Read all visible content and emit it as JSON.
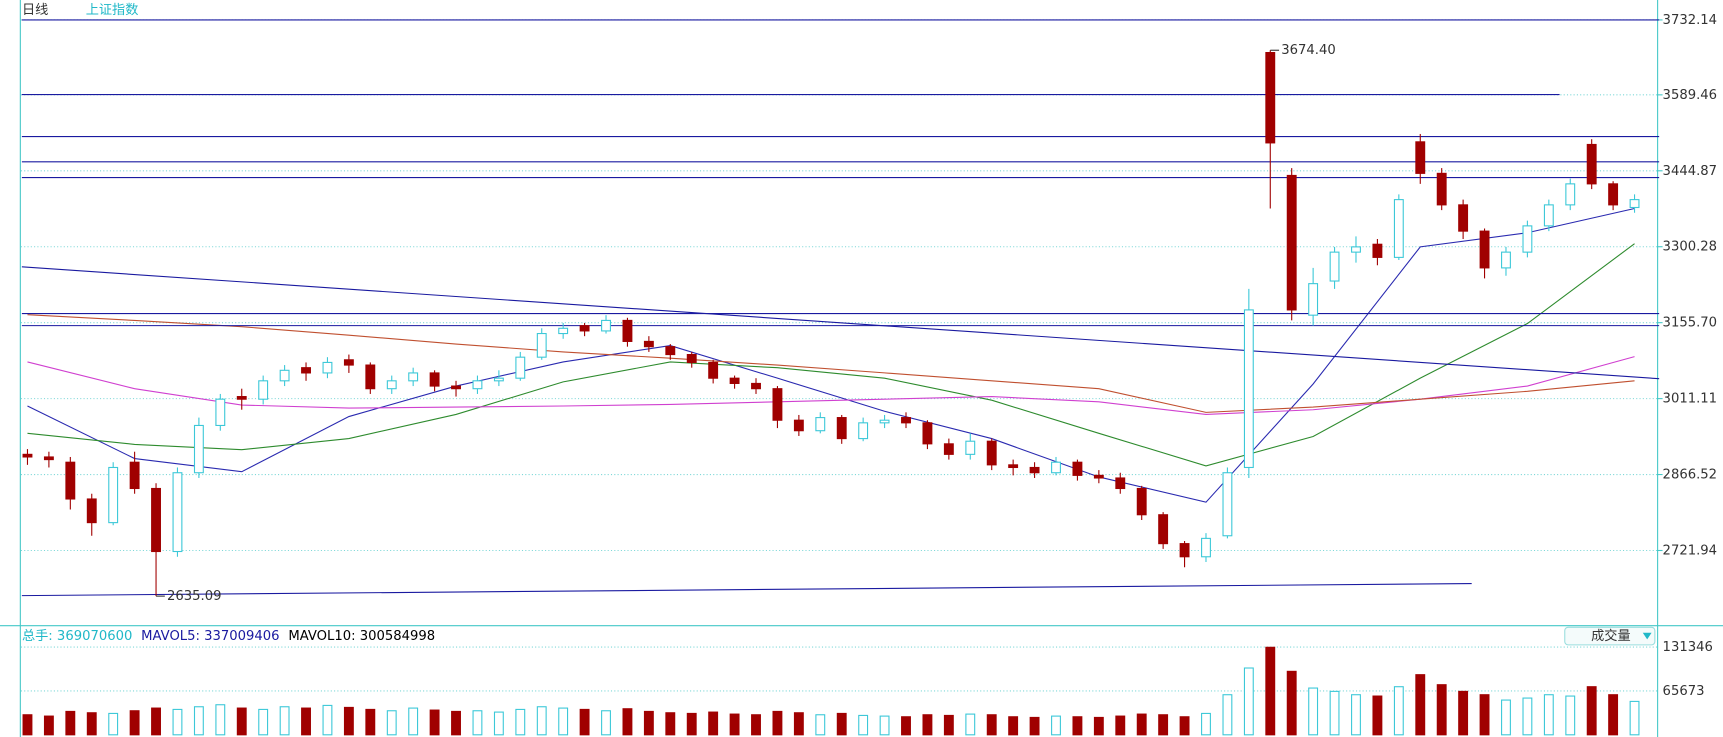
{
  "header": {
    "period": "日线",
    "symbol": "上证指数"
  },
  "chart_data": {
    "type": "candlestick",
    "up_color": "#3cc8d8",
    "down_color": "#a00000",
    "ylim": [
      2584,
      3745
    ],
    "yticks": [
      3732.14,
      3589.46,
      3444.87,
      3300.28,
      {
        "value": 3155.7,
        "label": "3155.70"
      },
      3011.11,
      2866.52,
      2721.94
    ],
    "grid": true,
    "candles": [
      [
        2905,
        2900,
        2885,
        2915
      ],
      [
        2900,
        2895,
        2880,
        2910
      ],
      [
        2890,
        2820,
        2800,
        2900
      ],
      [
        2820,
        2775,
        2750,
        2830
      ],
      [
        2775,
        2880,
        2770,
        2890
      ],
      [
        2890,
        2840,
        2830,
        2910
      ],
      [
        2840,
        2720,
        2635.09,
        2850
      ],
      [
        2720,
        2870,
        2710,
        2880
      ],
      [
        2870,
        2960,
        2860,
        2975
      ],
      [
        2960,
        3010,
        2950,
        3020
      ],
      [
        3015,
        3010,
        2990,
        3030
      ],
      [
        3010,
        3045,
        3000,
        3055
      ],
      [
        3045,
        3065,
        3035,
        3075
      ],
      [
        3070,
        3060,
        3045,
        3080
      ],
      [
        3060,
        3080,
        3050,
        3090
      ],
      [
        3085,
        3075,
        3060,
        3095
      ],
      [
        3075,
        3030,
        3020,
        3080
      ],
      [
        3030,
        3045,
        3020,
        3055
      ],
      [
        3045,
        3060,
        3035,
        3070
      ],
      [
        3060,
        3035,
        3025,
        3065
      ],
      [
        3035,
        3030,
        3015,
        3045
      ],
      [
        3030,
        3045,
        3020,
        3055
      ],
      [
        3045,
        3050,
        3035,
        3065
      ],
      [
        3050,
        3090,
        3045,
        3100
      ],
      [
        3090,
        3135,
        3085,
        3145
      ],
      [
        3135,
        3145,
        3125,
        3155
      ],
      [
        3150,
        3140,
        3130,
        3155
      ],
      [
        3140,
        3160,
        3135,
        3170
      ],
      [
        3160,
        3120,
        3110,
        3165
      ],
      [
        3120,
        3110,
        3100,
        3130
      ],
      [
        3110,
        3095,
        3085,
        3115
      ],
      [
        3095,
        3080,
        3070,
        3100
      ],
      [
        3080,
        3050,
        3040,
        3085
      ],
      [
        3050,
        3040,
        3030,
        3055
      ],
      [
        3040,
        3030,
        3020,
        3050
      ],
      [
        3030,
        2970,
        2955,
        3035
      ],
      [
        2970,
        2950,
        2940,
        2980
      ],
      [
        2950,
        2975,
        2945,
        2985
      ],
      [
        2975,
        2935,
        2925,
        2980
      ],
      [
        2935,
        2965,
        2930,
        2975
      ],
      [
        2965,
        2970,
        2955,
        2980
      ],
      [
        2975,
        2965,
        2955,
        2985
      ],
      [
        2965,
        2925,
        2915,
        2970
      ],
      [
        2925,
        2905,
        2895,
        2935
      ],
      [
        2905,
        2930,
        2895,
        2945
      ],
      [
        2930,
        2885,
        2875,
        2935
      ],
      [
        2885,
        2880,
        2865,
        2895
      ],
      [
        2880,
        2870,
        2860,
        2890
      ],
      [
        2870,
        2890,
        2865,
        2900
      ],
      [
        2890,
        2865,
        2855,
        2895
      ],
      [
        2865,
        2860,
        2850,
        2875
      ],
      [
        2860,
        2840,
        2830,
        2870
      ],
      [
        2840,
        2790,
        2780,
        2845
      ],
      [
        2790,
        2735,
        2725,
        2795
      ],
      [
        2735,
        2710,
        2690,
        2740
      ],
      [
        2710,
        2745,
        2700,
        2755
      ],
      [
        2750,
        2870,
        2745,
        2880
      ],
      [
        2880,
        3180,
        2860,
        3220
      ],
      [
        3670,
        3498,
        3373,
        3674.4
      ],
      [
        3436,
        3180,
        3160,
        3450
      ],
      [
        3170,
        3230,
        3150,
        3260
      ],
      [
        3235,
        3290,
        3220,
        3300
      ],
      [
        3290,
        3300,
        3270,
        3320
      ],
      [
        3305,
        3280,
        3265,
        3315
      ],
      [
        3280,
        3390,
        3275,
        3400
      ],
      [
        3500,
        3440,
        3420,
        3515
      ],
      [
        3440,
        3380,
        3370,
        3450
      ],
      [
        3380,
        3330,
        3315,
        3390
      ],
      [
        3330,
        3260,
        3240,
        3335
      ],
      [
        3260,
        3290,
        3245,
        3300
      ],
      [
        3290,
        3340,
        3280,
        3350
      ],
      [
        3340,
        3380,
        3330,
        3390
      ],
      [
        3380,
        3420,
        3370,
        3430
      ],
      [
        3495,
        3420,
        3410,
        3505
      ],
      [
        3420,
        3380,
        3370,
        3425
      ],
      [
        3375,
        3390,
        3365,
        3400
      ]
    ],
    "annotations": [
      {
        "label": "3674.40",
        "value": 3674.4,
        "index": 58
      },
      {
        "label": "2635.09",
        "value": 2635.09,
        "index": 6
      }
    ],
    "lines": [
      {
        "color": "#2a2ab0",
        "x": [
          0,
          5,
          10,
          15,
          20,
          25,
          30,
          35,
          40,
          45,
          50,
          55,
          60,
          65,
          70,
          75
        ],
        "values": [
          2997,
          2897,
          2872,
          2977,
          3035,
          3081,
          3112,
          3050,
          2987,
          2935,
          2862,
          2814,
          3039,
          3300,
          3327,
          3373
        ]
      },
      {
        "color": "#2e8b2e",
        "x": [
          0,
          5,
          10,
          15,
          20,
          25,
          30,
          35,
          40,
          45,
          50,
          55,
          60,
          65,
          70,
          75
        ],
        "values": [
          2945,
          2924,
          2914,
          2935,
          2981,
          3043,
          3081,
          3070,
          3050,
          3008,
          2945,
          2883,
          2939,
          3050,
          3154,
          3306
        ]
      },
      {
        "color": "#d040d0",
        "x": [
          0,
          5,
          10,
          15,
          20,
          25,
          30,
          35,
          40,
          45,
          50,
          55,
          60,
          65,
          70,
          75
        ],
        "values": [
          3081,
          3030,
          2999,
          2993,
          2995,
          2997,
          3000,
          3005,
          3010,
          3015,
          3005,
          2981,
          2990,
          3010,
          3035,
          3091
        ]
      },
      {
        "color": "#c05030",
        "x": [
          0,
          5,
          10,
          15,
          20,
          25,
          30,
          35,
          40,
          45,
          50,
          55,
          60,
          65,
          70,
          75
        ],
        "values": [
          3171,
          3160,
          3148,
          3132,
          3115,
          3100,
          3088,
          3075,
          3060,
          3045,
          3030,
          2985,
          2995,
          3010,
          3025,
          3045
        ]
      },
      {
        "color": "#1a1aa0",
        "x": [
          -0.26,
          76.15
        ],
        "values": [
          3732.14,
          3732.14
        ]
      },
      {
        "color": "#1a1aa0",
        "x": [
          -0.26,
          71.5
        ],
        "values": [
          3590,
          3590
        ]
      },
      {
        "color": "#1a1aa0",
        "x": [
          -0.26,
          76.15
        ],
        "values": [
          3510,
          3510
        ]
      },
      {
        "color": "#1a1aa0",
        "x": [
          -0.26,
          76.15
        ],
        "values": [
          3462,
          3462
        ]
      },
      {
        "color": "#1a1aa0",
        "x": [
          -0.26,
          76.15
        ],
        "values": [
          3432,
          3432
        ]
      },
      {
        "color": "#1a1aa0",
        "x": [
          -0.26,
          76.15
        ],
        "values": [
          3173,
          3173
        ]
      },
      {
        "color": "#1a1aa0",
        "x": [
          -0.26,
          76.15
        ],
        "values": [
          3150,
          3150
        ]
      },
      {
        "color": "#1a1aa0",
        "x": [
          -0.26,
          76.15
        ],
        "values": [
          3262,
          3049
        ]
      },
      {
        "color": "#1a1aa0",
        "x": [
          -0.26,
          67.4
        ],
        "values": [
          2636,
          2659
        ]
      }
    ],
    "volume": {
      "ylim": [
        0,
        160900
      ],
      "yticks": [
        131346,
        65673
      ],
      "values": [
        30000,
        28000,
        35000,
        33000,
        32000,
        36000,
        40000,
        38000,
        42000,
        45000,
        40000,
        38000,
        42000,
        40000,
        44000,
        41000,
        38000,
        36000,
        40000,
        37000,
        35000,
        36000,
        34000,
        38000,
        42000,
        40000,
        38000,
        36000,
        39000,
        35000,
        33000,
        32000,
        34000,
        31000,
        30000,
        35000,
        33000,
        30000,
        32000,
        29000,
        28000,
        27000,
        30000,
        29000,
        31000,
        30000,
        27000,
        26000,
        28000,
        27000,
        26000,
        28000,
        31000,
        30000,
        27000,
        32000,
        60000,
        100000,
        131000,
        95000,
        70000,
        65000,
        60000,
        58000,
        72000,
        90000,
        75000,
        65000,
        60000,
        52000,
        55000,
        60000,
        58000,
        72000,
        60000,
        50000
      ],
      "legend": [
        {
          "text": "总手: 369070600",
          "color": "#20b8c8"
        },
        {
          "text": "MAVOL5: 337009406",
          "color": "#1a1aa0"
        },
        {
          "text": "MAVOL10: 300584998",
          "color": "#000000"
        }
      ],
      "selector": "成交量"
    }
  }
}
